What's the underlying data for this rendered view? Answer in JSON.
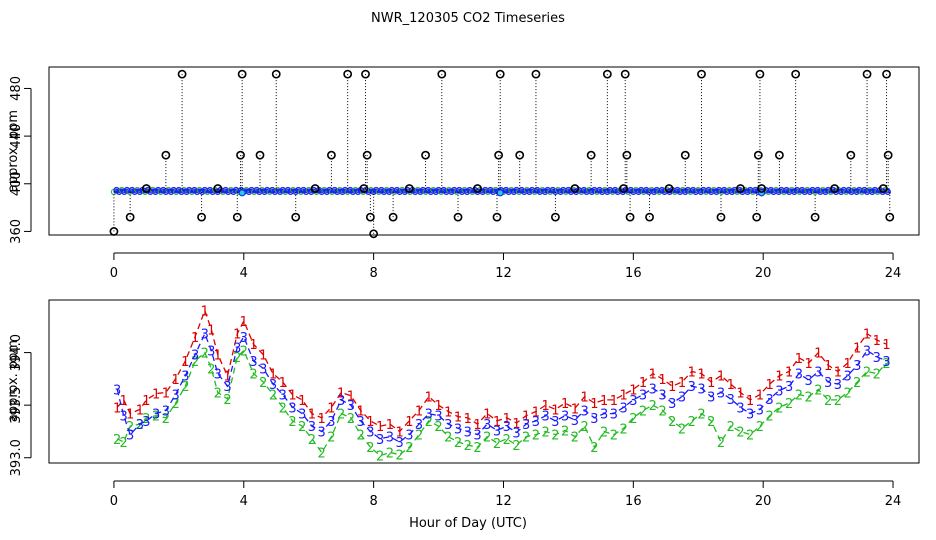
{
  "chart_data": [
    {
      "type": "scatter",
      "title": "NWR_120305  CO2 Timeseries",
      "xlabel": "",
      "ylabel": "approx. ppm",
      "xlim": [
        -2,
        24.8
      ],
      "ylim": [
        357,
        498
      ],
      "xticks": [
        "0",
        "4",
        "8",
        "12",
        "16",
        "20",
        "24"
      ],
      "yticks": [
        "360",
        "400",
        "440",
        "480"
      ],
      "baseline_ppm": 394,
      "spikes": [
        {
          "x": 0.0,
          "y": 360
        },
        {
          "x": 0.5,
          "y": 372
        },
        {
          "x": 1.0,
          "y": 396
        },
        {
          "x": 1.6,
          "y": 424
        },
        {
          "x": 2.1,
          "y": 492
        },
        {
          "x": 2.7,
          "y": 372
        },
        {
          "x": 3.2,
          "y": 396
        },
        {
          "x": 3.8,
          "y": 372
        },
        {
          "x": 3.9,
          "y": 424
        },
        {
          "x": 3.95,
          "y": 492
        },
        {
          "x": 4.5,
          "y": 424
        },
        {
          "x": 5.0,
          "y": 492
        },
        {
          "x": 5.6,
          "y": 372
        },
        {
          "x": 6.2,
          "y": 396
        },
        {
          "x": 6.7,
          "y": 424
        },
        {
          "x": 7.2,
          "y": 492
        },
        {
          "x": 7.7,
          "y": 396
        },
        {
          "x": 7.75,
          "y": 492
        },
        {
          "x": 7.8,
          "y": 424
        },
        {
          "x": 7.9,
          "y": 372
        },
        {
          "x": 8.0,
          "y": 358
        },
        {
          "x": 8.6,
          "y": 372
        },
        {
          "x": 9.1,
          "y": 396
        },
        {
          "x": 9.6,
          "y": 424
        },
        {
          "x": 10.1,
          "y": 492
        },
        {
          "x": 10.6,
          "y": 372
        },
        {
          "x": 11.2,
          "y": 396
        },
        {
          "x": 11.8,
          "y": 372
        },
        {
          "x": 11.85,
          "y": 424
        },
        {
          "x": 11.9,
          "y": 492
        },
        {
          "x": 12.5,
          "y": 424
        },
        {
          "x": 13.0,
          "y": 492
        },
        {
          "x": 13.6,
          "y": 372
        },
        {
          "x": 14.2,
          "y": 396
        },
        {
          "x": 14.7,
          "y": 424
        },
        {
          "x": 15.2,
          "y": 492
        },
        {
          "x": 15.7,
          "y": 396
        },
        {
          "x": 15.75,
          "y": 492
        },
        {
          "x": 15.8,
          "y": 424
        },
        {
          "x": 15.9,
          "y": 372
        },
        {
          "x": 16.5,
          "y": 372
        },
        {
          "x": 17.1,
          "y": 396
        },
        {
          "x": 17.6,
          "y": 424
        },
        {
          "x": 18.1,
          "y": 492
        },
        {
          "x": 18.7,
          "y": 372
        },
        {
          "x": 19.3,
          "y": 396
        },
        {
          "x": 19.8,
          "y": 372
        },
        {
          "x": 19.85,
          "y": 424
        },
        {
          "x": 19.9,
          "y": 492
        },
        {
          "x": 19.95,
          "y": 396
        },
        {
          "x": 20.5,
          "y": 424
        },
        {
          "x": 21.0,
          "y": 492
        },
        {
          "x": 21.6,
          "y": 372
        },
        {
          "x": 22.2,
          "y": 396
        },
        {
          "x": 22.7,
          "y": 424
        },
        {
          "x": 23.2,
          "y": 492
        },
        {
          "x": 23.7,
          "y": 396
        },
        {
          "x": 23.8,
          "y": 492
        },
        {
          "x": 23.85,
          "y": 424
        },
        {
          "x": 23.9,
          "y": 372
        }
      ]
    },
    {
      "type": "line",
      "title": "",
      "xlabel": "Hour of Day (UTC)",
      "ylabel": "approx. ppm",
      "xlim": [
        -2,
        24.8
      ],
      "ylim": [
        392.95,
        394.5
      ],
      "xticks": [
        "0",
        "4",
        "8",
        "12",
        "16",
        "20",
        "24"
      ],
      "yticks": [
        "393.0",
        "393.5",
        "394.0"
      ],
      "x": [
        0.1,
        0.3,
        0.5,
        0.8,
        1.0,
        1.3,
        1.6,
        1.9,
        2.2,
        2.5,
        2.8,
        3.0,
        3.2,
        3.5,
        3.8,
        4.0,
        4.3,
        4.6,
        4.9,
        5.2,
        5.5,
        5.8,
        6.1,
        6.4,
        6.7,
        7.0,
        7.3,
        7.6,
        7.9,
        8.2,
        8.5,
        8.8,
        9.1,
        9.4,
        9.7,
        10.0,
        10.3,
        10.6,
        10.9,
        11.2,
        11.5,
        11.8,
        12.1,
        12.4,
        12.7,
        13.0,
        13.3,
        13.6,
        13.9,
        14.2,
        14.5,
        14.8,
        15.1,
        15.4,
        15.7,
        16.0,
        16.3,
        16.6,
        16.9,
        17.2,
        17.5,
        17.8,
        18.1,
        18.4,
        18.7,
        19.0,
        19.3,
        19.6,
        19.9,
        20.2,
        20.5,
        20.8,
        21.1,
        21.4,
        21.7,
        22.0,
        22.3,
        22.6,
        22.9,
        23.2,
        23.5,
        23.8
      ],
      "series": [
        {
          "name": "1",
          "color": "#dd0000",
          "values": [
            393.48,
            393.55,
            393.42,
            393.46,
            393.55,
            393.61,
            393.62,
            393.75,
            393.92,
            394.15,
            394.4,
            394.22,
            393.98,
            393.78,
            394.18,
            394.3,
            394.08,
            393.98,
            393.8,
            393.72,
            393.6,
            393.55,
            393.42,
            393.38,
            393.48,
            393.62,
            393.59,
            393.45,
            393.35,
            393.3,
            393.32,
            393.25,
            393.35,
            393.45,
            393.58,
            393.5,
            393.44,
            393.39,
            393.38,
            393.32,
            393.42,
            393.35,
            393.38,
            393.33,
            393.4,
            393.44,
            393.5,
            393.46,
            393.52,
            393.47,
            393.58,
            393.52,
            393.55,
            393.55,
            393.6,
            393.65,
            393.72,
            393.8,
            393.75,
            393.68,
            393.72,
            393.82,
            393.8,
            393.72,
            393.78,
            393.7,
            393.62,
            393.55,
            393.6,
            393.7,
            393.78,
            393.82,
            393.95,
            393.9,
            394.0,
            393.88,
            393.82,
            393.9,
            394.05,
            394.18,
            394.12,
            394.08
          ]
        },
        {
          "name": "2",
          "color": "#22bb22",
          "values": [
            393.18,
            393.15,
            393.3,
            393.32,
            393.38,
            393.4,
            393.38,
            393.52,
            393.68,
            393.92,
            394.0,
            393.85,
            393.62,
            393.56,
            393.96,
            394.02,
            393.8,
            393.72,
            393.6,
            393.48,
            393.35,
            393.3,
            393.18,
            393.05,
            393.2,
            393.42,
            393.38,
            393.22,
            393.1,
            393.02,
            393.05,
            393.03,
            393.1,
            393.22,
            393.35,
            393.3,
            393.2,
            393.15,
            393.12,
            393.1,
            393.2,
            393.14,
            393.18,
            393.12,
            393.2,
            393.22,
            393.25,
            393.22,
            393.26,
            393.2,
            393.3,
            393.1,
            393.25,
            393.22,
            393.28,
            393.38,
            393.45,
            393.5,
            393.45,
            393.35,
            393.28,
            393.35,
            393.42,
            393.35,
            393.15,
            393.3,
            393.25,
            393.22,
            393.3,
            393.4,
            393.48,
            393.52,
            393.6,
            393.58,
            393.65,
            393.55,
            393.55,
            393.62,
            393.72,
            393.82,
            393.8,
            393.9
          ]
        },
        {
          "name": "3",
          "color": "#1a1aff",
          "values": [
            393.65,
            393.4,
            393.22,
            393.32,
            393.35,
            393.42,
            393.45,
            393.6,
            393.78,
            393.98,
            394.18,
            394.02,
            393.8,
            393.68,
            394.05,
            394.15,
            393.92,
            393.85,
            393.7,
            393.6,
            393.48,
            393.42,
            393.3,
            393.25,
            393.35,
            393.55,
            393.5,
            393.35,
            393.25,
            393.18,
            393.2,
            393.15,
            393.22,
            393.32,
            393.42,
            393.4,
            393.32,
            393.28,
            393.25,
            393.22,
            393.32,
            393.26,
            393.3,
            393.24,
            393.32,
            393.35,
            393.4,
            393.35,
            393.4,
            393.36,
            393.45,
            393.38,
            393.42,
            393.42,
            393.48,
            393.55,
            393.6,
            393.66,
            393.6,
            393.52,
            393.58,
            393.68,
            393.66,
            393.58,
            393.62,
            393.56,
            393.48,
            393.42,
            393.46,
            393.56,
            393.64,
            393.68,
            393.8,
            393.74,
            393.82,
            393.72,
            393.7,
            393.78,
            393.88,
            394.02,
            393.96,
            393.92
          ]
        }
      ]
    }
  ]
}
